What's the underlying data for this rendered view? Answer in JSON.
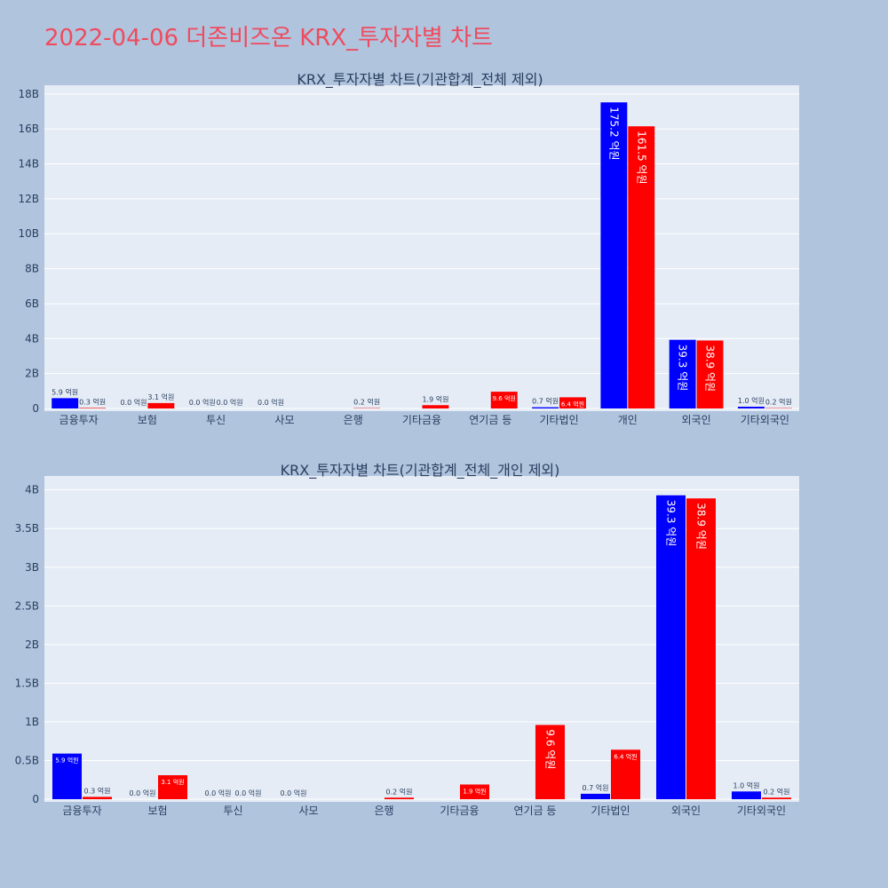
{
  "page_title": "2022-04-06 더존비즈온 KRX_투자자별 차트",
  "colors": {
    "buy": "#0000ff",
    "sell": "#ff0000",
    "plot_bg": "#e5ecf6",
    "page_bg": "#b0c4de",
    "title": "#ef4b5e"
  },
  "chart_data": [
    {
      "type": "bar",
      "title": "KRX_투자자별 차트(기관합계_전체 제외)",
      "categories": [
        "금융투자",
        "보험",
        "투신",
        "사모",
        "은행",
        "기타금융",
        "연기금 등",
        "기타법인",
        "개인",
        "외국인",
        "기타외국인"
      ],
      "series": [
        {
          "values": [
            0.59,
            0.0,
            0.0,
            0.0,
            null,
            null,
            null,
            0.07,
            17.52,
            3.93,
            0.1
          ],
          "labels": [
            "5.9 억원",
            "0.0 억원",
            "0.0 억원",
            "0.0 억원",
            "",
            "",
            "",
            "0.7 억원",
            "175.2 억원",
            "39.3 억원",
            "1.0 억원"
          ]
        },
        {
          "values": [
            0.03,
            0.31,
            0.0,
            null,
            0.02,
            0.19,
            0.96,
            0.64,
            16.15,
            3.89,
            0.02
          ],
          "labels": [
            "0.3 억원",
            "3.1 억원",
            "0.0 억원",
            "",
            "0.2 억원",
            "1.9 억원",
            "9.6 억원",
            "6.4 억원",
            "161.5 억원",
            "38.9 억원",
            "0.2 억원"
          ]
        }
      ],
      "yticks": [
        "0",
        "2B",
        "4B",
        "6B",
        "8B",
        "10B",
        "12B",
        "14B",
        "16B",
        "18B"
      ],
      "ytick_values": [
        0,
        2,
        4,
        6,
        8,
        10,
        12,
        14,
        16,
        18
      ],
      "ylim": [
        0,
        18.5
      ],
      "unit": "B"
    },
    {
      "type": "bar",
      "title": "KRX_투자자별 차트(기관합계_전체_개인 제외)",
      "categories": [
        "금융투자",
        "보험",
        "투신",
        "사모",
        "은행",
        "기타금융",
        "연기금 등",
        "기타법인",
        "외국인",
        "기타외국인"
      ],
      "series": [
        {
          "values": [
            0.59,
            0.0,
            0.0,
            0.0,
            null,
            null,
            null,
            0.07,
            3.93,
            0.1
          ],
          "labels": [
            "5.9 억원",
            "0.0 억원",
            "0.0 억원",
            "0.0 억원",
            "",
            "",
            "",
            "0.7 억원",
            "39.3 억원",
            "1.0 억원"
          ]
        },
        {
          "values": [
            0.03,
            0.31,
            0.0,
            null,
            0.02,
            0.19,
            0.96,
            0.64,
            3.89,
            0.02
          ],
          "labels": [
            "0.3 억원",
            "3.1 억원",
            "0.0 억원",
            "",
            "0.2 억원",
            "1.9 억원",
            "9.6 억원",
            "6.4 억원",
            "38.9 억원",
            "0.2 억원"
          ]
        }
      ],
      "yticks": [
        "0",
        "0.5B",
        "1B",
        "1.5B",
        "2B",
        "2.5B",
        "3B",
        "3.5B",
        "4B"
      ],
      "ytick_values": [
        0,
        0.5,
        1,
        1.5,
        2,
        2.5,
        3,
        3.5,
        4
      ],
      "ylim": [
        0,
        4.18
      ],
      "unit": "B"
    }
  ]
}
